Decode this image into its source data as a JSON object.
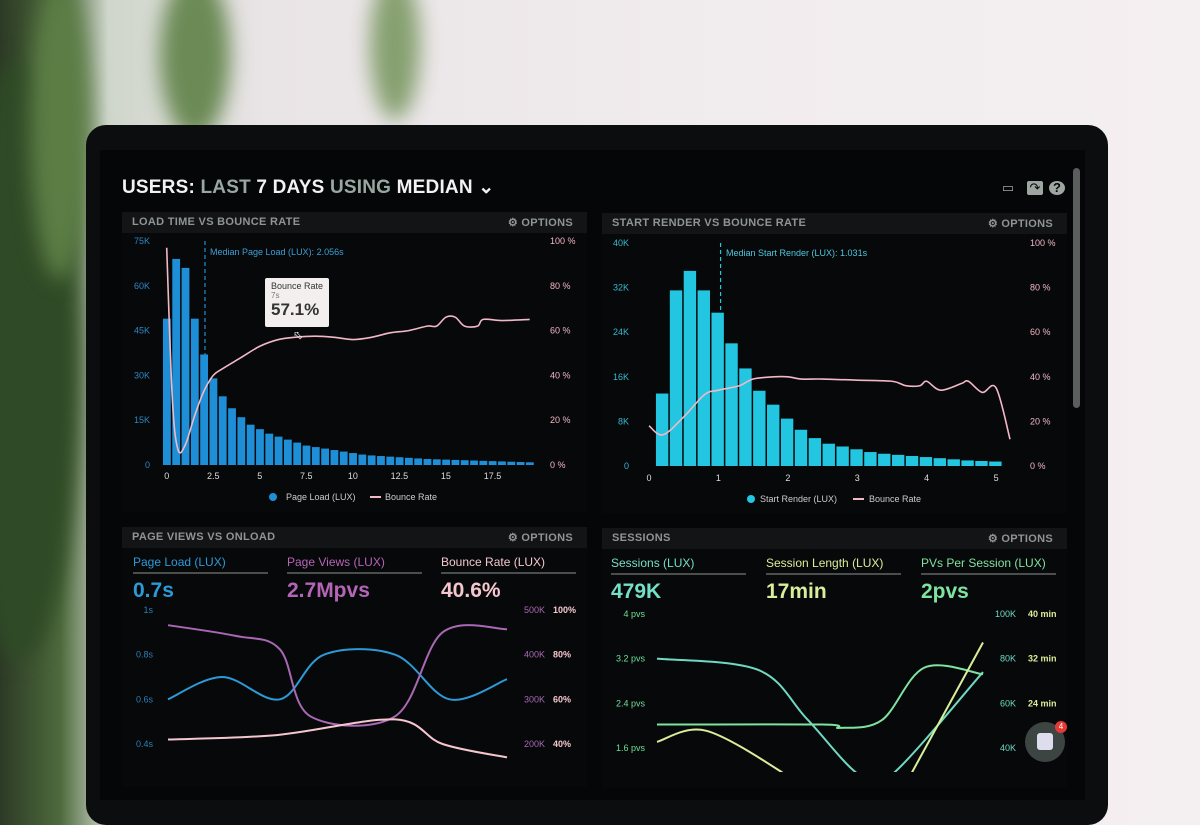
{
  "header": {
    "users": "USERS:",
    "last": "LAST",
    "days": "7 DAYS",
    "using": "USING",
    "median": "MEDIAN",
    "icons": [
      "monitor-icon",
      "share-icon",
      "help-icon"
    ]
  },
  "options_label": "OPTIONS",
  "panels": {
    "load": {
      "title": "LOAD TIME VS BOUNCE RATE",
      "median_label": "Median Page Load (LUX): 2.056s",
      "tooltip": {
        "title": "Bounce Rate",
        "sub": "7s",
        "value": "57.1%"
      }
    },
    "render": {
      "title": "START RENDER VS BOUNCE RATE",
      "median_label": "Median Start Render (LUX): 1.031s"
    },
    "views": {
      "title": "PAGE VIEWS VS ONLOAD",
      "metrics": [
        {
          "label": "Page Load (LUX)",
          "value": "0.7s",
          "color": "#2d9ad8"
        },
        {
          "label": "Page Views (LUX)",
          "value": "2.7Mpvs",
          "color": "#b565b8"
        },
        {
          "label": "Bounce Rate (LUX)",
          "value": "40.6%",
          "color": "#f4c7cf"
        }
      ]
    },
    "sessions": {
      "title": "SESSIONS",
      "metrics": [
        {
          "label": "Sessions (LUX)",
          "value": "479K",
          "color": "#74e0c8"
        },
        {
          "label": "Session Length (LUX)",
          "value": "17min",
          "color": "#d9ee9a"
        },
        {
          "label": "PVs Per Session (LUX)",
          "value": "2pvs",
          "color": "#7fe3a0"
        }
      ]
    }
  },
  "chat": {
    "badge": "4"
  },
  "chart_data": [
    {
      "type": "bar",
      "title": "LOAD TIME VS BOUNCE RATE",
      "bin_width": 0.5,
      "x": [
        0,
        0.5,
        1,
        1.5,
        2,
        2.5,
        3,
        3.5,
        4,
        4.5,
        5,
        5.5,
        6,
        6.5,
        7,
        7.5,
        8,
        8.5,
        9,
        9.5,
        10,
        10.5,
        11,
        11.5,
        12,
        12.5,
        13,
        13.5,
        14,
        14.5,
        15,
        15.5,
        16,
        16.5,
        17,
        17.5,
        18,
        18.5,
        19,
        19.5
      ],
      "series": [
        {
          "name": "Page Load (LUX)",
          "color": "#1e8fd6",
          "axis": "left",
          "values": [
            49000,
            69000,
            66000,
            49000,
            37000,
            29000,
            23000,
            19000,
            16000,
            13500,
            12000,
            10500,
            9500,
            8500,
            7500,
            6500,
            6000,
            5500,
            5000,
            4500,
            4000,
            3500,
            3200,
            3000,
            2800,
            2600,
            2400,
            2200,
            2000,
            1900,
            1800,
            1700,
            1600,
            1500,
            1400,
            1300,
            1200,
            1100,
            1000,
            900
          ]
        },
        {
          "name": "Bounce Rate",
          "color": "#f2b8c6",
          "axis": "right",
          "type": "line",
          "points": [
            [
              0,
              97
            ],
            [
              0.3,
              30
            ],
            [
              0.6,
              7
            ],
            [
              1,
              9
            ],
            [
              1.5,
              22
            ],
            [
              2,
              33
            ],
            [
              2.5,
              40
            ],
            [
              3,
              43
            ],
            [
              4,
              48
            ],
            [
              5,
              53
            ],
            [
              6,
              56
            ],
            [
              7,
              57.1
            ],
            [
              8,
              57.5
            ],
            [
              9,
              57
            ],
            [
              10,
              56
            ],
            [
              11,
              57
            ],
            [
              12,
              59
            ],
            [
              13,
              60
            ],
            [
              14,
              62
            ],
            [
              14.5,
              62
            ],
            [
              15,
              66
            ],
            [
              15.5,
              66
            ],
            [
              16,
              62
            ],
            [
              16.7,
              62
            ],
            [
              17,
              65
            ],
            [
              18,
              64.5
            ],
            [
              19.5,
              65
            ]
          ]
        }
      ],
      "xlim": [
        0,
        20
      ],
      "xticks": [
        0,
        2.5,
        5,
        7.5,
        10,
        12.5,
        15,
        17.5
      ],
      "left_ylim": [
        0,
        75000
      ],
      "left_ticks": [
        "0",
        "15K",
        "30K",
        "45K",
        "60K",
        "75K"
      ],
      "right_ylim": [
        0,
        100
      ],
      "right_ticks": [
        "0 %",
        "20 %",
        "40 %",
        "60 %",
        "80 %",
        "100 %"
      ],
      "median": 2.056,
      "legend": "bottom"
    },
    {
      "type": "bar",
      "title": "START RENDER VS BOUNCE RATE",
      "bin_width": 0.2,
      "x": [
        0.1,
        0.3,
        0.5,
        0.7,
        0.9,
        1.1,
        1.3,
        1.5,
        1.7,
        1.9,
        2.1,
        2.3,
        2.5,
        2.7,
        2.9,
        3.1,
        3.3,
        3.5,
        3.7,
        3.9,
        4.1,
        4.3,
        4.5,
        4.7,
        4.9
      ],
      "series": [
        {
          "name": "Start Render (LUX)",
          "color": "#22c6e0",
          "axis": "left",
          "values": [
            13000,
            31500,
            35000,
            31500,
            27500,
            22000,
            17500,
            13500,
            11000,
            8500,
            6500,
            5000,
            4000,
            3500,
            3000,
            2500,
            2200,
            2000,
            1800,
            1600,
            1400,
            1200,
            1000,
            900,
            800
          ]
        },
        {
          "name": "Bounce Rate",
          "color": "#f2b8c6",
          "axis": "right",
          "type": "line",
          "points": [
            [
              0,
              18
            ],
            [
              0.2,
              14
            ],
            [
              0.5,
              22
            ],
            [
              0.8,
              32
            ],
            [
              1,
              34
            ],
            [
              1.3,
              36
            ],
            [
              1.5,
              39
            ],
            [
              1.8,
              40
            ],
            [
              2,
              40
            ],
            [
              2.2,
              39
            ],
            [
              2.5,
              39
            ],
            [
              3,
              38.5
            ],
            [
              3.5,
              38
            ],
            [
              3.7,
              36
            ],
            [
              3.9,
              36
            ],
            [
              4,
              38
            ],
            [
              4.2,
              34
            ],
            [
              4.5,
              37
            ],
            [
              4.6,
              38
            ],
            [
              4.8,
              33
            ],
            [
              5,
              35
            ],
            [
              5.2,
              12
            ]
          ]
        }
      ],
      "xlim": [
        0,
        5.2
      ],
      "xticks": [
        0,
        1,
        2,
        3,
        4,
        5
      ],
      "left_ylim": [
        0,
        40000
      ],
      "left_ticks": [
        "0",
        "8K",
        "16K",
        "24K",
        "32K",
        "40K"
      ],
      "right_ylim": [
        0,
        100
      ],
      "right_ticks": [
        "0 %",
        "20 %",
        "40 %",
        "60 %",
        "80 %",
        "100 %"
      ],
      "median": 1.031,
      "legend": "bottom"
    },
    {
      "type": "line",
      "title": "PAGE VIEWS VS ONLOAD",
      "series": [
        {
          "name": "Page Load (LUX)",
          "color": "#2d9ad8",
          "axis": "left",
          "points": [
            [
              0,
              0.6
            ],
            [
              1.6,
              0.7
            ],
            [
              3.3,
              0.6
            ],
            [
              4.6,
              0.8
            ],
            [
              6.7,
              0.8
            ],
            [
              8.3,
              0.6
            ],
            [
              10,
              0.69
            ]
          ]
        },
        {
          "name": "Page Views (LUX)",
          "color": "#a868b4",
          "axis": "right1",
          "points": [
            [
              0,
              466
            ],
            [
              2,
              442
            ],
            [
              3.3,
              412
            ],
            [
              4.2,
              262
            ],
            [
              6.7,
              262
            ],
            [
              8.1,
              450
            ],
            [
              10,
              457
            ]
          ]
        },
        {
          "name": "Bounce Rate (LUX)",
          "color": "#f4c7cf",
          "axis": "right2",
          "points": [
            [
              0,
              42
            ],
            [
              3.2,
              44
            ],
            [
              6.7,
              51
            ],
            [
              8.1,
              40
            ],
            [
              10,
              34
            ]
          ]
        }
      ],
      "left_ylim": [
        0.4,
        1
      ],
      "left_ticks": [
        "0.4s",
        "0.6s",
        "0.8s",
        "1s"
      ],
      "right1_ylim": [
        200,
        500
      ],
      "right1_ticks": [
        "200K",
        "300K",
        "400K",
        "500K"
      ],
      "right2_ylim": [
        40,
        100
      ],
      "right2_ticks": [
        "40%",
        "60%",
        "80%",
        "100%"
      ]
    },
    {
      "type": "line",
      "title": "SESSIONS",
      "series": [
        {
          "name": "Sessions (LUX)",
          "color": "#6fd9c4",
          "axis": "right1",
          "points": [
            [
              0,
              80
            ],
            [
              3.1,
              75
            ],
            [
              4.6,
              53
            ],
            [
              6.2,
              28
            ],
            [
              7.2,
              28
            ],
            [
              10,
              74
            ]
          ]
        },
        {
          "name": "PVs Per Session (LUX)",
          "color": "#7fe3a0",
          "axis": "left",
          "points": [
            [
              0,
              2.02
            ],
            [
              5.1,
              2.02
            ],
            [
              5.6,
              1.96
            ],
            [
              6.9,
              2.1
            ],
            [
              8.2,
              3.04
            ],
            [
              10,
              2.92
            ]
          ]
        },
        {
          "name": "Session Length (LUX)",
          "color": "#d9ee9a",
          "axis": "right2",
          "points": [
            [
              0,
              17.1
            ],
            [
              1.5,
              19.1
            ],
            [
              3.9,
              11.4
            ],
            [
              4.5,
              8
            ],
            [
              7.5,
              8
            ],
            [
              7.8,
              11.4
            ],
            [
              10,
              34.9
            ]
          ]
        }
      ],
      "left_ylim": [
        1.6,
        4
      ],
      "left_ticks": [
        "1.6 pvs",
        "2.4 pvs",
        "3.2 pvs",
        "4 pvs"
      ],
      "right1_ylim": [
        40,
        100
      ],
      "right1_ticks": [
        "40K",
        "60K",
        "80K",
        "100K"
      ],
      "right2_ylim": [
        16,
        40
      ],
      "right2_ticks": [
        "",
        "24 min",
        "32 min",
        "40 min"
      ]
    }
  ]
}
